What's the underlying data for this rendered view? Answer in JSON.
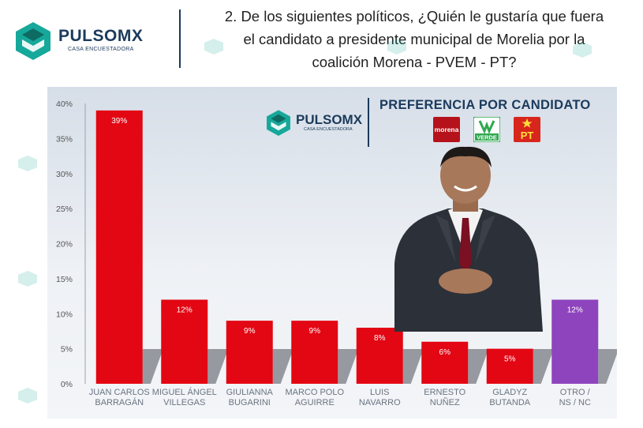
{
  "header": {
    "brand": "PULSOMX",
    "brand_sub": "CASA ENCUESTADORA",
    "question_lines": [
      "2. De los siguientes políticos, ¿Quién le gustaría que fuera",
      "el candidato a presidente municipal de Morelia por la",
      "coalición Morena - PVEM - PT?"
    ]
  },
  "panel": {
    "brand": "PULSOMX",
    "brand_sub": "CASA ENCUESTADORA",
    "title": "PREFERENCIA POR CANDIDATO",
    "parties": [
      {
        "name": "morena",
        "label": "morena",
        "color": "#b5121b"
      },
      {
        "name": "verde",
        "label": "VERDE",
        "color": "#2fa84f"
      },
      {
        "name": "pt",
        "label": "PT",
        "color": "#d8261c"
      }
    ]
  },
  "chart_data": {
    "type": "bar",
    "categories": [
      [
        "JUAN CARLOS",
        "BARRAGÁN"
      ],
      [
        "MIGUEL ÁNGEL",
        "VILLEGAS"
      ],
      [
        "GIULIANNA",
        "BUGARINI"
      ],
      [
        "MARCO POLO",
        "AGUIRRE"
      ],
      [
        "LUIS",
        "NAVARRO"
      ],
      [
        "ERNESTO",
        "NUÑEZ"
      ],
      [
        "GLADYZ",
        "BUTANDA"
      ],
      [
        "OTRO /",
        "NS / NC"
      ]
    ],
    "values": [
      39,
      12,
      9,
      9,
      8,
      6,
      5,
      12
    ],
    "value_labels": [
      "39%",
      "12%",
      "9%",
      "9%",
      "8%",
      "6%",
      "5%",
      "12%"
    ],
    "colors": [
      "#e30613",
      "#e30613",
      "#e30613",
      "#e30613",
      "#e30613",
      "#e30613",
      "#e30613",
      "#8e44bd"
    ],
    "yticks": [
      "0%",
      "5%",
      "10%",
      "15%",
      "20%",
      "25%",
      "30%",
      "35%",
      "40%"
    ],
    "ylim": [
      0,
      40
    ],
    "grid": false
  }
}
